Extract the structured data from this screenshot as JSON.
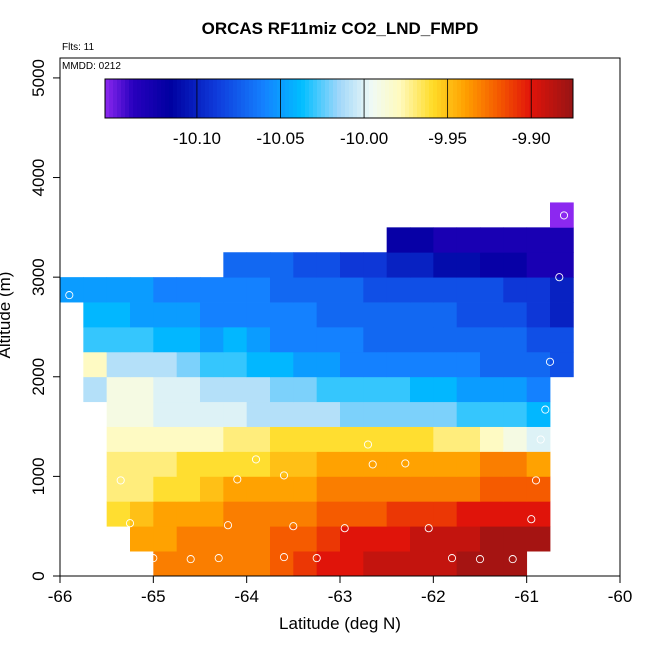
{
  "chart_data": {
    "type": "heatmap",
    "title": "ORCAS RF11miz CO2_LND_FMPD",
    "notes": {
      "flights": "Flts: 11",
      "date": "MMDD: 0212"
    },
    "xlabel": "Latitude (deg N)",
    "ylabel": "Altitude (m)",
    "xlim": [
      -66,
      -60
    ],
    "ylim": [
      0,
      5200
    ],
    "x_ticks": [
      -66,
      -65,
      -64,
      -63,
      -62,
      -61,
      -60
    ],
    "y_ticks": [
      0,
      1000,
      2000,
      3000,
      4000,
      5000
    ],
    "colorbar": {
      "range": [
        -10.155,
        -9.875
      ],
      "ticks": [
        -10.1,
        -10.05,
        -10.0,
        -9.95,
        -9.9
      ],
      "tick_labels": [
        "-10.10",
        "-10.05",
        "-10.00",
        "-9.95",
        "-9.90"
      ]
    },
    "grid": {
      "x_start": -66,
      "x_step": 0.25,
      "alt_start": 0,
      "alt_step": 250
    },
    "rows": [
      {
        "alt": 0,
        "start": -65.0,
        "values": [
          -9.93,
          -9.93,
          -9.93,
          -9.93,
          -9.93,
          -9.92,
          -9.91,
          -9.9,
          -9.9,
          -9.89,
          -9.89,
          -9.89,
          -9.89,
          -9.88,
          -9.88,
          -9.88
        ]
      },
      {
        "alt": 250,
        "start": -65.25,
        "values": [
          -9.94,
          -9.94,
          -9.93,
          -9.93,
          -9.93,
          -9.93,
          -9.92,
          -9.92,
          -9.91,
          -9.9,
          -9.9,
          -9.9,
          -9.89,
          -9.89,
          -9.89,
          -9.88,
          -9.88,
          -9.88
        ]
      },
      {
        "alt": 500,
        "start": -65.5,
        "values": [
          -9.96,
          -9.95,
          -9.94,
          -9.94,
          -9.94,
          -9.93,
          -9.93,
          -9.93,
          -9.93,
          -9.92,
          -9.92,
          -9.92,
          -9.91,
          -9.91,
          -9.91,
          -9.9,
          -9.9,
          -9.9,
          -9.9
        ]
      },
      {
        "alt": 750,
        "start": -65.5,
        "values": [
          -9.97,
          -9.97,
          -9.96,
          -9.96,
          -9.95,
          -9.94,
          -9.94,
          -9.94,
          -9.94,
          -9.93,
          -9.93,
          -9.93,
          -9.93,
          -9.93,
          -9.93,
          -9.93,
          -9.92,
          -9.92,
          -9.92
        ]
      },
      {
        "alt": 1000,
        "start": -65.5,
        "values": [
          -9.97,
          -9.97,
          -9.97,
          -9.96,
          -9.96,
          -9.96,
          -9.96,
          -9.95,
          -9.95,
          -9.94,
          -9.94,
          -9.94,
          -9.94,
          -9.94,
          -9.94,
          -9.94,
          -9.93,
          -9.93,
          -9.94
        ]
      },
      {
        "alt": 1250,
        "start": -65.5,
        "values": [
          -9.98,
          -9.98,
          -9.98,
          -9.98,
          -9.98,
          -9.97,
          -9.97,
          -9.96,
          -9.96,
          -9.96,
          -9.96,
          -9.96,
          -9.96,
          -9.96,
          -9.97,
          -9.97,
          -9.98,
          -9.99,
          -10.0
        ]
      },
      {
        "alt": 1500,
        "start": -65.5,
        "values": [
          -9.99,
          -9.99,
          -10.0,
          -10.0,
          -10.0,
          -10.0,
          -10.01,
          -10.01,
          -10.01,
          -10.01,
          -10.02,
          -10.02,
          -10.02,
          -10.02,
          -10.02,
          -10.03,
          -10.03,
          -10.03,
          -10.04
        ]
      },
      {
        "alt": 1750,
        "start": -65.75,
        "values": [
          -10.01,
          -9.99,
          -9.99,
          -10.0,
          -10.0,
          -10.01,
          -10.01,
          -10.01,
          -10.02,
          -10.02,
          -10.03,
          -10.03,
          -10.03,
          -10.03,
          -10.04,
          -10.04,
          -10.05,
          -10.05,
          -10.05,
          -10.06
        ]
      },
      {
        "alt": 2000,
        "start": -65.75,
        "values": [
          -9.98,
          -10.01,
          -10.01,
          -10.01,
          -10.02,
          -10.03,
          -10.03,
          -10.04,
          -10.04,
          -10.05,
          -10.05,
          -10.06,
          -10.06,
          -10.06,
          -10.06,
          -10.06,
          -10.06,
          -10.07,
          -10.07,
          -10.07,
          -10.08
        ]
      },
      {
        "alt": 2250,
        "start": -65.75,
        "values": [
          -10.03,
          -10.03,
          -10.03,
          -10.04,
          -10.04,
          -10.05,
          -10.04,
          -10.05,
          -10.06,
          -10.06,
          -10.06,
          -10.06,
          -10.07,
          -10.07,
          -10.07,
          -10.07,
          -10.07,
          -10.07,
          -10.07,
          -10.08,
          -10.08
        ]
      },
      {
        "alt": 2500,
        "start": -65.75,
        "values": [
          -10.04,
          -10.04,
          -10.05,
          -10.05,
          -10.05,
          -10.06,
          -10.06,
          -10.06,
          -10.06,
          -10.06,
          -10.07,
          -10.07,
          -10.07,
          -10.07,
          -10.07,
          -10.07,
          -10.08,
          -10.08,
          -10.08,
          -10.09,
          -10.1
        ]
      },
      {
        "alt": 2750,
        "start": -66.0,
        "values": [
          -10.05,
          -10.05,
          -10.05,
          -10.05,
          -10.06,
          -10.06,
          -10.06,
          -10.06,
          -10.06,
          -10.07,
          -10.07,
          -10.07,
          -10.07,
          -10.08,
          -10.08,
          -10.08,
          -10.08,
          -10.08,
          -10.08,
          -10.09,
          -10.09,
          -10.1
        ]
      },
      {
        "alt": 3000,
        "start": -64.25,
        "values": [
          -10.07,
          -10.07,
          -10.07,
          -10.08,
          -10.08,
          -10.09,
          -10.09,
          -10.1,
          -10.1,
          -10.11,
          -10.11,
          -10.12,
          -10.12,
          -10.13,
          -10.13
        ]
      },
      {
        "alt": 3250,
        "start": -62.5,
        "values": [
          -10.12,
          -10.12,
          -10.13,
          -10.13,
          -10.13,
          -10.13,
          -10.13,
          -10.13
        ]
      },
      {
        "alt": 3500,
        "start": -60.75,
        "values": [
          -10.16
        ]
      }
    ],
    "observations": [
      {
        "lat": -65.0,
        "alt": 180
      },
      {
        "lat": -64.6,
        "alt": 170
      },
      {
        "lat": -64.3,
        "alt": 180
      },
      {
        "lat": -63.6,
        "alt": 190
      },
      {
        "lat": -63.25,
        "alt": 180
      },
      {
        "lat": -61.8,
        "alt": 180
      },
      {
        "lat": -61.5,
        "alt": 170
      },
      {
        "lat": -61.15,
        "alt": 170
      },
      {
        "lat": -65.25,
        "alt": 530
      },
      {
        "lat": -64.2,
        "alt": 510
      },
      {
        "lat": -63.5,
        "alt": 500
      },
      {
        "lat": -62.95,
        "alt": 480
      },
      {
        "lat": -62.05,
        "alt": 480
      },
      {
        "lat": -60.95,
        "alt": 570
      },
      {
        "lat": -65.35,
        "alt": 960
      },
      {
        "lat": -64.1,
        "alt": 970
      },
      {
        "lat": -63.6,
        "alt": 1010
      },
      {
        "lat": -60.9,
        "alt": 960
      },
      {
        "lat": -63.9,
        "alt": 1170
      },
      {
        "lat": -62.65,
        "alt": 1120
      },
      {
        "lat": -62.3,
        "alt": 1130
      },
      {
        "lat": -62.7,
        "alt": 1320
      },
      {
        "lat": -60.85,
        "alt": 1370
      },
      {
        "lat": -60.8,
        "alt": 1670
      },
      {
        "lat": -60.75,
        "alt": 2150
      },
      {
        "lat": -65.9,
        "alt": 2820
      },
      {
        "lat": -60.65,
        "alt": 3000
      },
      {
        "lat": -60.6,
        "alt": 3620
      }
    ]
  }
}
